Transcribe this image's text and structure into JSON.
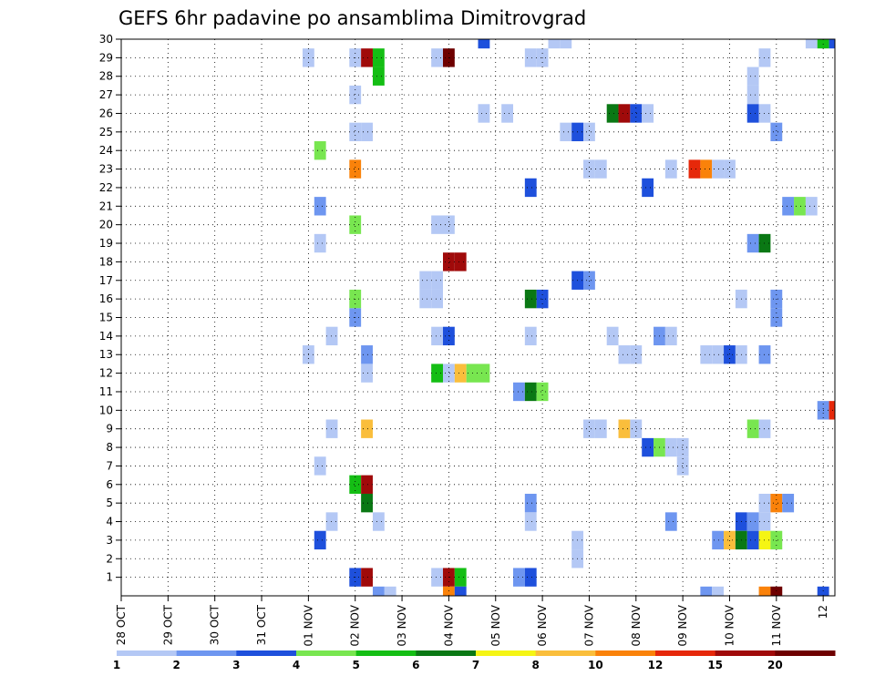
{
  "chart_data": {
    "type": "heatmap",
    "title": "GEFS 6hr padavine po ansamblima Dimitrovgrad",
    "xlabel": "",
    "ylabel": "",
    "x_tick_labels": [
      "28 OCT",
      "29 OCT",
      "30 OCT",
      "31 OCT",
      "01 NOV",
      "02 NOV",
      "03 NOV",
      "04 NOV",
      "05 NOV",
      "06 NOV",
      "07 NOV",
      "08 NOV",
      "09 NOV",
      "10 NOV",
      "11 NOV",
      "12"
    ],
    "x_range_days": [
      0,
      15.25
    ],
    "y_tick_labels": [
      "1",
      "2",
      "3",
      "4",
      "5",
      "6",
      "7",
      "8",
      "9",
      "10",
      "11",
      "12",
      "13",
      "14",
      "15",
      "16",
      "17",
      "18",
      "19",
      "20",
      "21",
      "22",
      "23",
      "24",
      "25",
      "26",
      "27",
      "28",
      "29",
      "30"
    ],
    "y_range": [
      0,
      30
    ],
    "grid": true,
    "colorbar": {
      "labels": [
        "1",
        "2",
        "3",
        "4",
        "5",
        "6",
        "7",
        "8",
        "10",
        "12",
        "15",
        "20"
      ],
      "colors": [
        "#b4c8f5",
        "#6e96f0",
        "#1e50dc",
        "#78e650",
        "#14be14",
        "#0a7814",
        "#f5f514",
        "#fabe3c",
        "#fa820a",
        "#e6280a",
        "#a00a0a",
        "#6e0000"
      ]
    },
    "cells": [
      {
        "member": 30,
        "day": 7.75,
        "cat": 3
      },
      {
        "member": 30,
        "day": 9.25,
        "cat": 1
      },
      {
        "member": 30,
        "day": 9.5,
        "cat": 1
      },
      {
        "member": 30,
        "day": 14.75,
        "cat": 1
      },
      {
        "member": 30,
        "day": 15.0,
        "cat": 5
      },
      {
        "member": 30,
        "day": 15.25,
        "cat": 3
      },
      {
        "member": 29,
        "day": 4.0,
        "cat": 1
      },
      {
        "member": 29,
        "day": 5.0,
        "cat": 1
      },
      {
        "member": 29,
        "day": 5.25,
        "cat": 11
      },
      {
        "member": 29,
        "day": 5.5,
        "cat": 5
      },
      {
        "member": 29,
        "day": 6.75,
        "cat": 1
      },
      {
        "member": 29,
        "day": 7.0,
        "cat": 12
      },
      {
        "member": 29,
        "day": 8.75,
        "cat": 1
      },
      {
        "member": 29,
        "day": 9.0,
        "cat": 1
      },
      {
        "member": 29,
        "day": 13.75,
        "cat": 1
      },
      {
        "member": 28,
        "day": 5.5,
        "cat": 5
      },
      {
        "member": 28,
        "day": 13.5,
        "cat": 1
      },
      {
        "member": 27,
        "day": 5.0,
        "cat": 1
      },
      {
        "member": 27,
        "day": 13.5,
        "cat": 1
      },
      {
        "member": 26,
        "day": 7.75,
        "cat": 1
      },
      {
        "member": 26,
        "day": 8.25,
        "cat": 1
      },
      {
        "member": 26,
        "day": 10.5,
        "cat": 6
      },
      {
        "member": 26,
        "day": 10.75,
        "cat": 11
      },
      {
        "member": 26,
        "day": 11.0,
        "cat": 3
      },
      {
        "member": 26,
        "day": 11.25,
        "cat": 1
      },
      {
        "member": 26,
        "day": 13.5,
        "cat": 3
      },
      {
        "member": 26,
        "day": 13.75,
        "cat": 1
      },
      {
        "member": 25,
        "day": 5.0,
        "cat": 1
      },
      {
        "member": 25,
        "day": 5.25,
        "cat": 1
      },
      {
        "member": 25,
        "day": 9.5,
        "cat": 1
      },
      {
        "member": 25,
        "day": 9.75,
        "cat": 3
      },
      {
        "member": 25,
        "day": 10.0,
        "cat": 1
      },
      {
        "member": 25,
        "day": 14.0,
        "cat": 2
      },
      {
        "member": 24,
        "day": 4.25,
        "cat": 4
      },
      {
        "member": 23,
        "day": 5.0,
        "cat": 9
      },
      {
        "member": 23,
        "day": 10.0,
        "cat": 1
      },
      {
        "member": 23,
        "day": 10.25,
        "cat": 1
      },
      {
        "member": 23,
        "day": 11.75,
        "cat": 1
      },
      {
        "member": 23,
        "day": 12.25,
        "cat": 10
      },
      {
        "member": 23,
        "day": 12.5,
        "cat": 9
      },
      {
        "member": 23,
        "day": 12.75,
        "cat": 1
      },
      {
        "member": 23,
        "day": 13.0,
        "cat": 1
      },
      {
        "member": 22,
        "day": 8.75,
        "cat": 3
      },
      {
        "member": 22,
        "day": 11.25,
        "cat": 3
      },
      {
        "member": 21,
        "day": 4.25,
        "cat": 2
      },
      {
        "member": 21,
        "day": 14.25,
        "cat": 2
      },
      {
        "member": 21,
        "day": 14.5,
        "cat": 4
      },
      {
        "member": 21,
        "day": 14.75,
        "cat": 1
      },
      {
        "member": 20,
        "day": 5.0,
        "cat": 4
      },
      {
        "member": 20,
        "day": 6.75,
        "cat": 1
      },
      {
        "member": 20,
        "day": 7.0,
        "cat": 1
      },
      {
        "member": 19,
        "day": 4.25,
        "cat": 1
      },
      {
        "member": 19,
        "day": 13.5,
        "cat": 2
      },
      {
        "member": 19,
        "day": 13.75,
        "cat": 6
      },
      {
        "member": 18,
        "day": 7.0,
        "cat": 11
      },
      {
        "member": 18,
        "day": 7.25,
        "cat": 11
      },
      {
        "member": 17,
        "day": 6.5,
        "cat": 1
      },
      {
        "member": 17,
        "day": 6.75,
        "cat": 1
      },
      {
        "member": 17,
        "day": 9.75,
        "cat": 3
      },
      {
        "member": 17,
        "day": 10.0,
        "cat": 2
      },
      {
        "member": 16,
        "day": 5.0,
        "cat": 4
      },
      {
        "member": 16,
        "day": 6.5,
        "cat": 1
      },
      {
        "member": 16,
        "day": 6.75,
        "cat": 1
      },
      {
        "member": 16,
        "day": 8.75,
        "cat": 6
      },
      {
        "member": 16,
        "day": 9.0,
        "cat": 3
      },
      {
        "member": 16,
        "day": 13.25,
        "cat": 1
      },
      {
        "member": 16,
        "day": 14.0,
        "cat": 2
      },
      {
        "member": 15,
        "day": 5.0,
        "cat": 2
      },
      {
        "member": 15,
        "day": 14.0,
        "cat": 2
      },
      {
        "member": 14,
        "day": 4.5,
        "cat": 1
      },
      {
        "member": 14,
        "day": 6.75,
        "cat": 1
      },
      {
        "member": 14,
        "day": 7.0,
        "cat": 3
      },
      {
        "member": 14,
        "day": 8.75,
        "cat": 1
      },
      {
        "member": 14,
        "day": 10.5,
        "cat": 1
      },
      {
        "member": 14,
        "day": 11.5,
        "cat": 2
      },
      {
        "member": 14,
        "day": 11.75,
        "cat": 1
      },
      {
        "member": 13,
        "day": 4.0,
        "cat": 1
      },
      {
        "member": 13,
        "day": 5.25,
        "cat": 2
      },
      {
        "member": 13,
        "day": 10.75,
        "cat": 1
      },
      {
        "member": 13,
        "day": 11.0,
        "cat": 1
      },
      {
        "member": 13,
        "day": 12.5,
        "cat": 1
      },
      {
        "member": 13,
        "day": 12.75,
        "cat": 1
      },
      {
        "member": 13,
        "day": 13.0,
        "cat": 3
      },
      {
        "member": 13,
        "day": 13.25,
        "cat": 1
      },
      {
        "member": 13,
        "day": 13.75,
        "cat": 2
      },
      {
        "member": 12,
        "day": 5.25,
        "cat": 1
      },
      {
        "member": 12,
        "day": 6.75,
        "cat": 5
      },
      {
        "member": 12,
        "day": 7.0,
        "cat": 1
      },
      {
        "member": 12,
        "day": 7.25,
        "cat": 8
      },
      {
        "member": 12,
        "day": 7.5,
        "cat": 4
      },
      {
        "member": 12,
        "day": 7.75,
        "cat": 4
      },
      {
        "member": 11,
        "day": 8.5,
        "cat": 2
      },
      {
        "member": 11,
        "day": 8.75,
        "cat": 6
      },
      {
        "member": 11,
        "day": 9.0,
        "cat": 4
      },
      {
        "member": 10,
        "day": 15.0,
        "cat": 2
      },
      {
        "member": 10,
        "day": 15.25,
        "cat": 10
      },
      {
        "member": 9,
        "day": 4.5,
        "cat": 1
      },
      {
        "member": 9,
        "day": 5.25,
        "cat": 8
      },
      {
        "member": 9,
        "day": 10.0,
        "cat": 1
      },
      {
        "member": 9,
        "day": 10.25,
        "cat": 1
      },
      {
        "member": 9,
        "day": 10.75,
        "cat": 8
      },
      {
        "member": 9,
        "day": 11.0,
        "cat": 1
      },
      {
        "member": 9,
        "day": 13.5,
        "cat": 4
      },
      {
        "member": 9,
        "day": 13.75,
        "cat": 1
      },
      {
        "member": 8,
        "day": 11.25,
        "cat": 3
      },
      {
        "member": 8,
        "day": 11.5,
        "cat": 4
      },
      {
        "member": 8,
        "day": 11.75,
        "cat": 1
      },
      {
        "member": 8,
        "day": 12.0,
        "cat": 1
      },
      {
        "member": 7,
        "day": 4.25,
        "cat": 1
      },
      {
        "member": 7,
        "day": 12.0,
        "cat": 1
      },
      {
        "member": 6,
        "day": 5.0,
        "cat": 5
      },
      {
        "member": 6,
        "day": 5.25,
        "cat": 11
      },
      {
        "member": 5,
        "day": 5.25,
        "cat": 6
      },
      {
        "member": 5,
        "day": 8.75,
        "cat": 2
      },
      {
        "member": 5,
        "day": 13.75,
        "cat": 1
      },
      {
        "member": 5,
        "day": 14.0,
        "cat": 9
      },
      {
        "member": 5,
        "day": 14.25,
        "cat": 2
      },
      {
        "member": 4,
        "day": 4.5,
        "cat": 1
      },
      {
        "member": 4,
        "day": 5.5,
        "cat": 1
      },
      {
        "member": 4,
        "day": 8.75,
        "cat": 1
      },
      {
        "member": 4,
        "day": 11.75,
        "cat": 2
      },
      {
        "member": 4,
        "day": 13.25,
        "cat": 3
      },
      {
        "member": 4,
        "day": 13.5,
        "cat": 2
      },
      {
        "member": 4,
        "day": 13.75,
        "cat": 1
      },
      {
        "member": 3,
        "day": 4.25,
        "cat": 3
      },
      {
        "member": 3,
        "day": 9.75,
        "cat": 1
      },
      {
        "member": 3,
        "day": 12.75,
        "cat": 2
      },
      {
        "member": 3,
        "day": 13.0,
        "cat": 8
      },
      {
        "member": 3,
        "day": 13.25,
        "cat": 6
      },
      {
        "member": 3,
        "day": 13.5,
        "cat": 3
      },
      {
        "member": 3,
        "day": 13.75,
        "cat": 7
      },
      {
        "member": 3,
        "day": 14.0,
        "cat": 4
      },
      {
        "member": 2,
        "day": 9.75,
        "cat": 1
      },
      {
        "member": 1,
        "day": 5.0,
        "cat": 3
      },
      {
        "member": 1,
        "day": 5.25,
        "cat": 11
      },
      {
        "member": 1,
        "day": 6.75,
        "cat": 1
      },
      {
        "member": 1,
        "day": 7.0,
        "cat": 11
      },
      {
        "member": 1,
        "day": 7.25,
        "cat": 5
      },
      {
        "member": 1,
        "day": 8.5,
        "cat": 2
      },
      {
        "member": 1,
        "day": 8.75,
        "cat": 3
      },
      {
        "member": 0,
        "day": 5.5,
        "cat": 2
      },
      {
        "member": 0,
        "day": 5.75,
        "cat": 1
      },
      {
        "member": 0,
        "day": 7.0,
        "cat": 9
      },
      {
        "member": 0,
        "day": 7.25,
        "cat": 3
      },
      {
        "member": 0,
        "day": 12.5,
        "cat": 2
      },
      {
        "member": 0,
        "day": 12.75,
        "cat": 1
      },
      {
        "member": 0,
        "day": 13.75,
        "cat": 9
      },
      {
        "member": 0,
        "day": 14.0,
        "cat": 12
      },
      {
        "member": 0,
        "day": 15.0,
        "cat": 3
      }
    ]
  }
}
